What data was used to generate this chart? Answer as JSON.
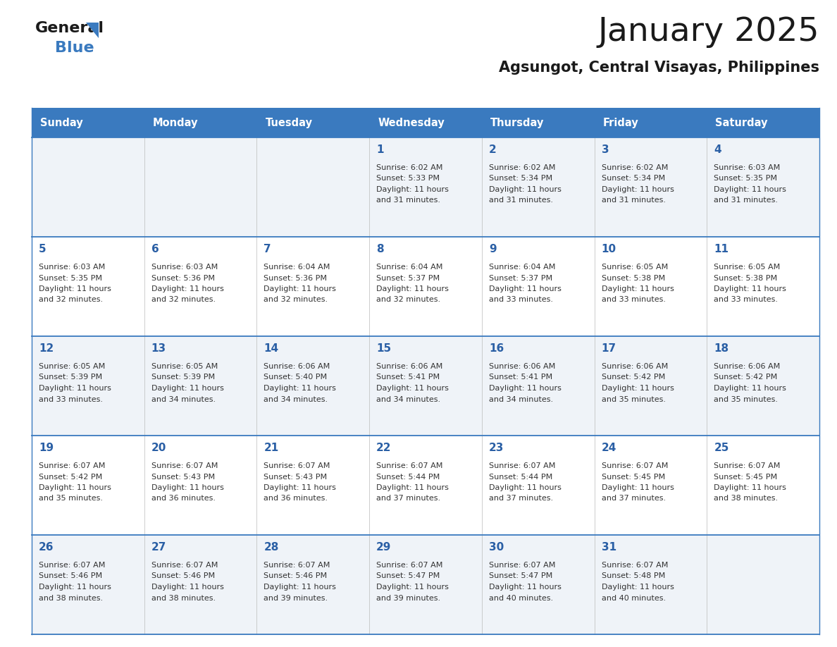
{
  "title": "January 2025",
  "subtitle": "Agsungot, Central Visayas, Philippines",
  "header_bg": "#3a7abf",
  "header_text": "#ffffff",
  "row_bg_odd": "#eff3f8",
  "row_bg_even": "#ffffff",
  "day_number_color": "#2a5fa5",
  "cell_text_color": "#333333",
  "border_color": "#3a7abf",
  "days_of_week": [
    "Sunday",
    "Monday",
    "Tuesday",
    "Wednesday",
    "Thursday",
    "Friday",
    "Saturday"
  ],
  "calendar_data": [
    [
      {
        "day": "",
        "sunrise": "",
        "sunset": "",
        "daylight": ""
      },
      {
        "day": "",
        "sunrise": "",
        "sunset": "",
        "daylight": ""
      },
      {
        "day": "",
        "sunrise": "",
        "sunset": "",
        "daylight": ""
      },
      {
        "day": "1",
        "sunrise": "6:02 AM",
        "sunset": "5:33 PM",
        "daylight": "11 hours and 31 minutes."
      },
      {
        "day": "2",
        "sunrise": "6:02 AM",
        "sunset": "5:34 PM",
        "daylight": "11 hours and 31 minutes."
      },
      {
        "day": "3",
        "sunrise": "6:02 AM",
        "sunset": "5:34 PM",
        "daylight": "11 hours and 31 minutes."
      },
      {
        "day": "4",
        "sunrise": "6:03 AM",
        "sunset": "5:35 PM",
        "daylight": "11 hours and 31 minutes."
      }
    ],
    [
      {
        "day": "5",
        "sunrise": "6:03 AM",
        "sunset": "5:35 PM",
        "daylight": "11 hours and 32 minutes."
      },
      {
        "day": "6",
        "sunrise": "6:03 AM",
        "sunset": "5:36 PM",
        "daylight": "11 hours and 32 minutes."
      },
      {
        "day": "7",
        "sunrise": "6:04 AM",
        "sunset": "5:36 PM",
        "daylight": "11 hours and 32 minutes."
      },
      {
        "day": "8",
        "sunrise": "6:04 AM",
        "sunset": "5:37 PM",
        "daylight": "11 hours and 32 minutes."
      },
      {
        "day": "9",
        "sunrise": "6:04 AM",
        "sunset": "5:37 PM",
        "daylight": "11 hours and 33 minutes."
      },
      {
        "day": "10",
        "sunrise": "6:05 AM",
        "sunset": "5:38 PM",
        "daylight": "11 hours and 33 minutes."
      },
      {
        "day": "11",
        "sunrise": "6:05 AM",
        "sunset": "5:38 PM",
        "daylight": "11 hours and 33 minutes."
      }
    ],
    [
      {
        "day": "12",
        "sunrise": "6:05 AM",
        "sunset": "5:39 PM",
        "daylight": "11 hours and 33 minutes."
      },
      {
        "day": "13",
        "sunrise": "6:05 AM",
        "sunset": "5:39 PM",
        "daylight": "11 hours and 34 minutes."
      },
      {
        "day": "14",
        "sunrise": "6:06 AM",
        "sunset": "5:40 PM",
        "daylight": "11 hours and 34 minutes."
      },
      {
        "day": "15",
        "sunrise": "6:06 AM",
        "sunset": "5:41 PM",
        "daylight": "11 hours and 34 minutes."
      },
      {
        "day": "16",
        "sunrise": "6:06 AM",
        "sunset": "5:41 PM",
        "daylight": "11 hours and 34 minutes."
      },
      {
        "day": "17",
        "sunrise": "6:06 AM",
        "sunset": "5:42 PM",
        "daylight": "11 hours and 35 minutes."
      },
      {
        "day": "18",
        "sunrise": "6:06 AM",
        "sunset": "5:42 PM",
        "daylight": "11 hours and 35 minutes."
      }
    ],
    [
      {
        "day": "19",
        "sunrise": "6:07 AM",
        "sunset": "5:42 PM",
        "daylight": "11 hours and 35 minutes."
      },
      {
        "day": "20",
        "sunrise": "6:07 AM",
        "sunset": "5:43 PM",
        "daylight": "11 hours and 36 minutes."
      },
      {
        "day": "21",
        "sunrise": "6:07 AM",
        "sunset": "5:43 PM",
        "daylight": "11 hours and 36 minutes."
      },
      {
        "day": "22",
        "sunrise": "6:07 AM",
        "sunset": "5:44 PM",
        "daylight": "11 hours and 37 minutes."
      },
      {
        "day": "23",
        "sunrise": "6:07 AM",
        "sunset": "5:44 PM",
        "daylight": "11 hours and 37 minutes."
      },
      {
        "day": "24",
        "sunrise": "6:07 AM",
        "sunset": "5:45 PM",
        "daylight": "11 hours and 37 minutes."
      },
      {
        "day": "25",
        "sunrise": "6:07 AM",
        "sunset": "5:45 PM",
        "daylight": "11 hours and 38 minutes."
      }
    ],
    [
      {
        "day": "26",
        "sunrise": "6:07 AM",
        "sunset": "5:46 PM",
        "daylight": "11 hours and 38 minutes."
      },
      {
        "day": "27",
        "sunrise": "6:07 AM",
        "sunset": "5:46 PM",
        "daylight": "11 hours and 38 minutes."
      },
      {
        "day": "28",
        "sunrise": "6:07 AM",
        "sunset": "5:46 PM",
        "daylight": "11 hours and 39 minutes."
      },
      {
        "day": "29",
        "sunrise": "6:07 AM",
        "sunset": "5:47 PM",
        "daylight": "11 hours and 39 minutes."
      },
      {
        "day": "30",
        "sunrise": "6:07 AM",
        "sunset": "5:47 PM",
        "daylight": "11 hours and 40 minutes."
      },
      {
        "day": "31",
        "sunrise": "6:07 AM",
        "sunset": "5:48 PM",
        "daylight": "11 hours and 40 minutes."
      },
      {
        "day": "",
        "sunrise": "",
        "sunset": "",
        "daylight": ""
      }
    ]
  ]
}
